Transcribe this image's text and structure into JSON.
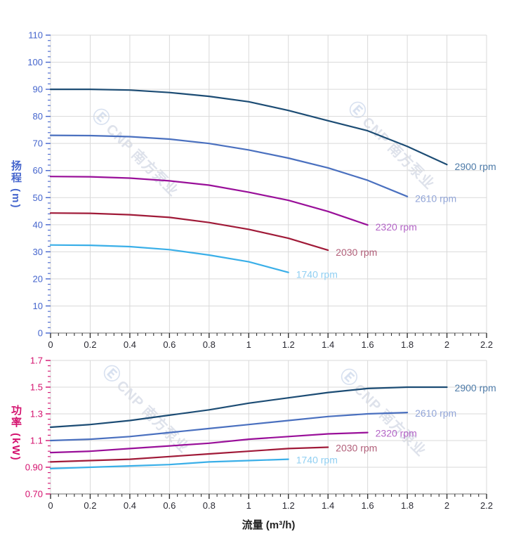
{
  "page": {
    "x_axis_title": "流量 (m³/h)"
  },
  "watermark": {
    "logo_glyph": "Ⓔ",
    "brand": "CNP 南方泵业"
  },
  "colors": {
    "background": "#ffffff",
    "grid": "#d9d9d9",
    "x_axis_line": "#8c8c8c",
    "x_tick": "#333333",
    "x_tick_label": "#2a2a33",
    "head_axis": "#4565cd",
    "power_axis": "#d4116e"
  },
  "chart_data": [
    {
      "type": "line",
      "id": "head-vs-flow",
      "title": "",
      "xlabel": "流量 (m³/h)",
      "ylabel": "扬程 (m)",
      "y_axis_title": "扬程 (m)",
      "axis_color": "#4565cd",
      "xlim": [
        0,
        2.2
      ],
      "ylim": [
        0,
        110
      ],
      "x_major_step": 0.2,
      "x_minor_step": 0.04,
      "y_major_step": 10,
      "y_minor_step": 2,
      "grid": true,
      "legend_position": "curve-end-labels",
      "x_ticks": [
        [
          0,
          "0"
        ],
        [
          0.2,
          "0.2"
        ],
        [
          0.4,
          "0.4"
        ],
        [
          0.6,
          "0.6"
        ],
        [
          0.8,
          "0.8"
        ],
        [
          1,
          "1"
        ],
        [
          1.2,
          "1.2"
        ],
        [
          1.4,
          "1.4"
        ],
        [
          1.6,
          "1.6"
        ],
        [
          1.8,
          "1.8"
        ],
        [
          2,
          "2"
        ],
        [
          2.2,
          "2.2"
        ]
      ],
      "y_ticks": [
        [
          0,
          "0"
        ],
        [
          10,
          "10"
        ],
        [
          20,
          "20"
        ],
        [
          30,
          "30"
        ],
        [
          40,
          "40"
        ],
        [
          50,
          "50"
        ],
        [
          60,
          "60"
        ],
        [
          70,
          "70"
        ],
        [
          80,
          "80"
        ],
        [
          90,
          "90"
        ],
        [
          100,
          "100"
        ],
        [
          110,
          "110"
        ]
      ],
      "series": [
        {
          "name": "2900 rpm",
          "color": "#1c4c74",
          "label_color": "#4f7ca9",
          "points": [
            [
              0,
              90
            ],
            [
              0.2,
              90
            ],
            [
              0.4,
              89.7
            ],
            [
              0.6,
              88.8
            ],
            [
              0.8,
              87.4
            ],
            [
              1.0,
              85.4
            ],
            [
              1.2,
              82.2
            ],
            [
              1.4,
              78.4
            ],
            [
              1.6,
              74.7
            ],
            [
              1.8,
              68.9
            ],
            [
              2.0,
              62.2
            ]
          ]
        },
        {
          "name": "2610 rpm",
          "color": "#4a70bf",
          "label_color": "#93a6d8",
          "points": [
            [
              0,
              73
            ],
            [
              0.2,
              72.9
            ],
            [
              0.4,
              72.5
            ],
            [
              0.6,
              71.6
            ],
            [
              0.8,
              70.0
            ],
            [
              1.0,
              67.6
            ],
            [
              1.2,
              64.6
            ],
            [
              1.4,
              61.0
            ],
            [
              1.6,
              56.4
            ],
            [
              1.8,
              50.4
            ]
          ]
        },
        {
          "name": "2320 rpm",
          "color": "#990f99",
          "label_color": "#b364c6",
          "points": [
            [
              0,
              57.8
            ],
            [
              0.2,
              57.7
            ],
            [
              0.4,
              57.2
            ],
            [
              0.6,
              56.2
            ],
            [
              0.8,
              54.6
            ],
            [
              1.0,
              52.0
            ],
            [
              1.2,
              49.0
            ],
            [
              1.4,
              44.9
            ],
            [
              1.6,
              39.9
            ]
          ]
        },
        {
          "name": "2030 rpm",
          "color": "#a01a38",
          "label_color": "#b2607a",
          "points": [
            [
              0,
              44.3
            ],
            [
              0.2,
              44.2
            ],
            [
              0.4,
              43.7
            ],
            [
              0.6,
              42.7
            ],
            [
              0.8,
              40.8
            ],
            [
              1.0,
              38.3
            ],
            [
              1.2,
              35.0
            ],
            [
              1.4,
              30.6
            ]
          ]
        },
        {
          "name": "1740 rpm",
          "color": "#3aafe8",
          "label_color": "#90cff2",
          "points": [
            [
              0,
              32.5
            ],
            [
              0.2,
              32.4
            ],
            [
              0.4,
              31.9
            ],
            [
              0.6,
              30.8
            ],
            [
              0.8,
              28.8
            ],
            [
              1.0,
              26.3
            ],
            [
              1.2,
              22.4
            ]
          ]
        }
      ]
    },
    {
      "type": "line",
      "id": "power-vs-flow",
      "title": "",
      "xlabel": "流量 (m³/h)",
      "ylabel": "功率 (kW)",
      "y_axis_title": "功率 (kW)",
      "axis_color": "#d4116e",
      "xlim": [
        0,
        2.2
      ],
      "ylim": [
        0.7,
        1.7
      ],
      "x_major_step": 0.2,
      "x_minor_step": 0.04,
      "y_major_step": 0.2,
      "y_minor_step": 0.04,
      "grid": true,
      "legend_position": "curve-end-labels",
      "x_ticks": [
        [
          0,
          "0"
        ],
        [
          0.2,
          "0.2"
        ],
        [
          0.4,
          "0.4"
        ],
        [
          0.6,
          "0.6"
        ],
        [
          0.8,
          "0.8"
        ],
        [
          1,
          "1"
        ],
        [
          1.2,
          "1.2"
        ],
        [
          1.4,
          "1.4"
        ],
        [
          1.6,
          "1.6"
        ],
        [
          1.8,
          "1.8"
        ],
        [
          2,
          "2"
        ],
        [
          2.2,
          "2.2"
        ]
      ],
      "y_ticks": [
        [
          0.7,
          "0.70"
        ],
        [
          0.9,
          "0.90"
        ],
        [
          1.1,
          "1.1"
        ],
        [
          1.3,
          "1.3"
        ],
        [
          1.5,
          "1.5"
        ],
        [
          1.7,
          "1.7"
        ]
      ],
      "series": [
        {
          "name": "2900 rpm",
          "color": "#1c4c74",
          "label_color": "#4f7ca9",
          "points": [
            [
              0,
              1.2
            ],
            [
              0.2,
              1.22
            ],
            [
              0.4,
              1.25
            ],
            [
              0.6,
              1.29
            ],
            [
              0.8,
              1.33
            ],
            [
              1.0,
              1.38
            ],
            [
              1.2,
              1.42
            ],
            [
              1.4,
              1.46
            ],
            [
              1.6,
              1.49
            ],
            [
              1.8,
              1.5
            ],
            [
              2.0,
              1.5
            ]
          ]
        },
        {
          "name": "2610 rpm",
          "color": "#4a70bf",
          "label_color": "#93a6d8",
          "points": [
            [
              0,
              1.1
            ],
            [
              0.2,
              1.11
            ],
            [
              0.4,
              1.13
            ],
            [
              0.6,
              1.16
            ],
            [
              0.8,
              1.19
            ],
            [
              1.0,
              1.22
            ],
            [
              1.2,
              1.25
            ],
            [
              1.4,
              1.28
            ],
            [
              1.6,
              1.3
            ],
            [
              1.8,
              1.31
            ]
          ]
        },
        {
          "name": "2320 rpm",
          "color": "#990f99",
          "label_color": "#b364c6",
          "points": [
            [
              0,
              1.01
            ],
            [
              0.2,
              1.02
            ],
            [
              0.4,
              1.04
            ],
            [
              0.6,
              1.06
            ],
            [
              0.8,
              1.08
            ],
            [
              1.0,
              1.11
            ],
            [
              1.2,
              1.13
            ],
            [
              1.4,
              1.15
            ],
            [
              1.6,
              1.16
            ]
          ]
        },
        {
          "name": "2030 rpm",
          "color": "#a01a38",
          "label_color": "#b2607a",
          "points": [
            [
              0,
              0.94
            ],
            [
              0.2,
              0.95
            ],
            [
              0.4,
              0.96
            ],
            [
              0.6,
              0.98
            ],
            [
              0.8,
              1.0
            ],
            [
              1.0,
              1.02
            ],
            [
              1.2,
              1.04
            ],
            [
              1.4,
              1.05
            ]
          ]
        },
        {
          "name": "1740 rpm",
          "color": "#3aafe8",
          "label_color": "#90cff2",
          "points": [
            [
              0,
              0.89
            ],
            [
              0.2,
              0.9
            ],
            [
              0.4,
              0.91
            ],
            [
              0.6,
              0.92
            ],
            [
              0.8,
              0.94
            ],
            [
              1.0,
              0.95
            ],
            [
              1.2,
              0.96
            ]
          ]
        }
      ]
    }
  ]
}
